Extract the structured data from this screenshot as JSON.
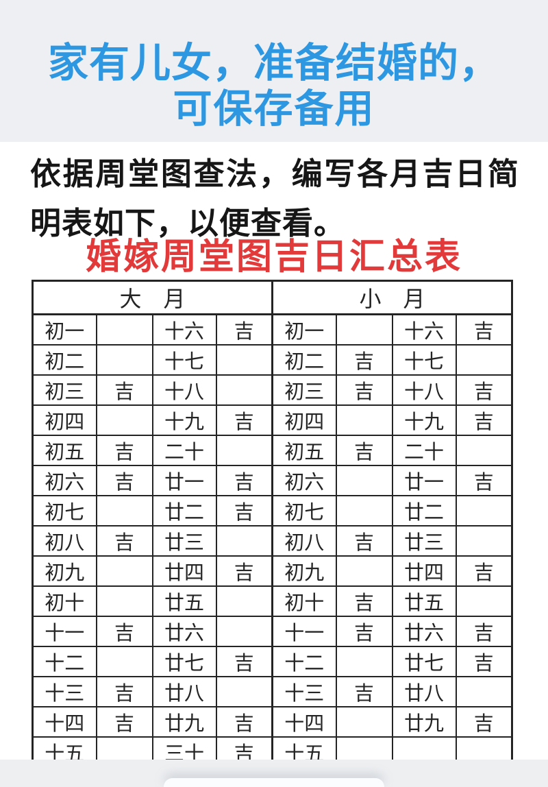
{
  "banner": {
    "title_line1": "家有儿女，准备结婚的，",
    "title_line2": "可保存备用"
  },
  "intro": {
    "text": "依据周堂图查法，编写各月吉日简明表如下，以便查看。"
  },
  "table_title": "婚嫁周堂图吉日汇总表",
  "table": {
    "group_headers": [
      "大　月",
      "小　月"
    ],
    "luck_label": "吉",
    "rows": [
      [
        "初一",
        "",
        "十六",
        "吉",
        "初一",
        "",
        "十六",
        "吉"
      ],
      [
        "初二",
        "",
        "十七",
        "",
        "初二",
        "吉",
        "十七",
        ""
      ],
      [
        "初三",
        "吉",
        "十八",
        "",
        "初三",
        "吉",
        "十八",
        "吉"
      ],
      [
        "初四",
        "",
        "十九",
        "吉",
        "初四",
        "",
        "十九",
        "吉"
      ],
      [
        "初五",
        "吉",
        "二十",
        "",
        "初五",
        "吉",
        "二十",
        ""
      ],
      [
        "初六",
        "吉",
        "廿一",
        "吉",
        "初六",
        "",
        "廿一",
        "吉"
      ],
      [
        "初七",
        "",
        "廿二",
        "吉",
        "初七",
        "",
        "廿二",
        ""
      ],
      [
        "初八",
        "吉",
        "廿三",
        "",
        "初八",
        "吉",
        "廿三",
        ""
      ],
      [
        "初九",
        "",
        "廿四",
        "吉",
        "初九",
        "",
        "廿四",
        "吉"
      ],
      [
        "初十",
        "",
        "廿五",
        "",
        "初十",
        "吉",
        "廿五",
        ""
      ],
      [
        "十一",
        "吉",
        "廿六",
        "",
        "十一",
        "吉",
        "廿六",
        "吉"
      ],
      [
        "十二",
        "",
        "廿七",
        "吉",
        "十二",
        "",
        "廿七",
        "吉"
      ],
      [
        "十三",
        "吉",
        "廿八",
        "",
        "十三",
        "吉",
        "廿八",
        ""
      ],
      [
        "十四",
        "吉",
        "廿九",
        "吉",
        "十四",
        "",
        "廿九",
        "吉"
      ],
      [
        "十五",
        "",
        "三十",
        "吉",
        "十五",
        "",
        "",
        ""
      ]
    ]
  },
  "colors": {
    "banner_background": "#edeff2",
    "headline_blue": "#2e97e2",
    "title_red": "#e23a3a",
    "table_ink": "#242424",
    "footer_band": "#edeff1"
  }
}
